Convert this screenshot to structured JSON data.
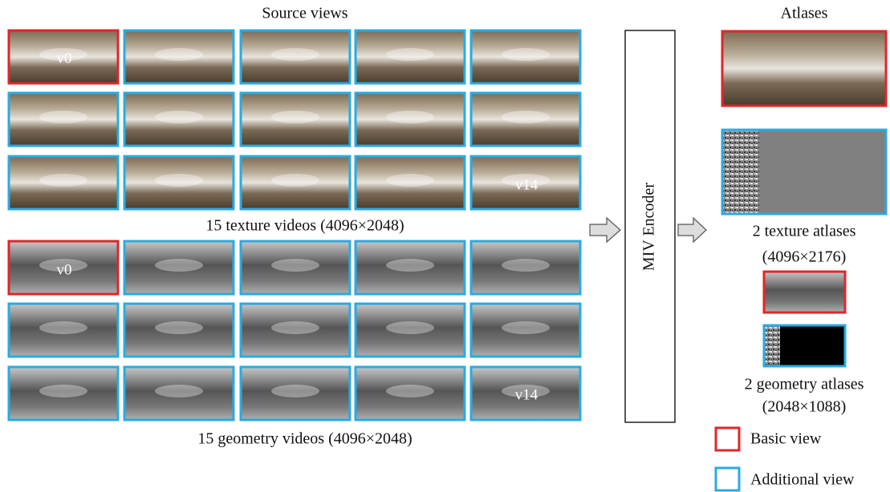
{
  "source_views": {
    "title": "Source views",
    "texture_caption": "15 texture videos (4096×2048)",
    "geometry_caption": "15 geometry videos (4096×2048)",
    "texture_labels": [
      "v0",
      "v14"
    ],
    "geometry_labels": [
      "v0",
      "v14"
    ]
  },
  "encoder": {
    "label": "MIV Encoder"
  },
  "atlases": {
    "title": "Atlases",
    "texture_caption": [
      "2 texture atlases",
      "(4096×2176)"
    ],
    "geometry_caption": [
      "2 geometry atlases",
      "(2048×1088)"
    ]
  },
  "legend": [
    {
      "label": "Basic view"
    },
    {
      "label": "Additional view"
    }
  ]
}
